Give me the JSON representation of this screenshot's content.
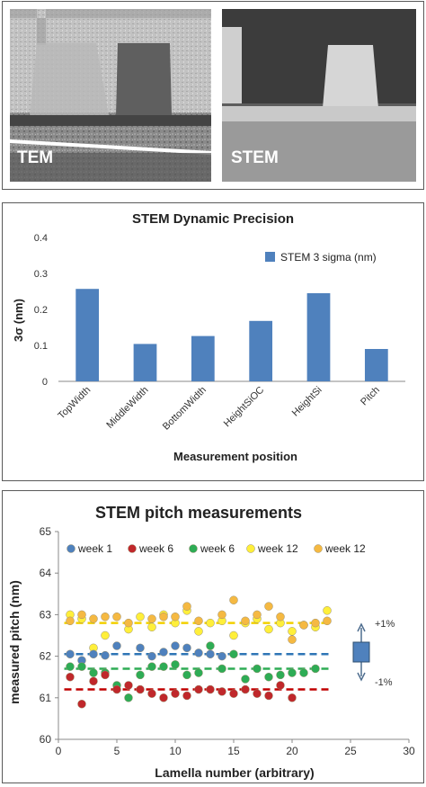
{
  "images": [
    {
      "label": "TEM",
      "icon": "tem-micrograph"
    },
    {
      "label": "STEM",
      "icon": "stem-micrograph"
    }
  ],
  "chart_data": [
    {
      "type": "bar",
      "title": "STEM Dynamic Precision",
      "xlabel": "Measurement position",
      "ylabel": "3σ (nm)",
      "ylim": [
        0,
        0.4
      ],
      "yticks": [
        "0",
        "0.1",
        "0.2",
        "0.3",
        "0.4"
      ],
      "categories": [
        "TopWidth",
        "MiddleWidth",
        "BottomWidth",
        "HeightSiOC",
        "HeightSi",
        "Pitch"
      ],
      "series": [
        {
          "name": "STEM 3 sigma (nm)",
          "color": "#4f81bd",
          "values": [
            0.257,
            0.104,
            0.126,
            0.168,
            0.245,
            0.09
          ]
        }
      ],
      "legend": "top-right",
      "grid": false
    },
    {
      "type": "scatter",
      "title": "STEM pitch measurements",
      "xlabel": "Lamella number (arbitrary)",
      "ylabel": "measured pitch (nm)",
      "xlim": [
        0,
        30
      ],
      "ylim": [
        60,
        65
      ],
      "xticks": [
        "0",
        "5",
        "10",
        "15",
        "20",
        "25",
        "30"
      ],
      "yticks": [
        "60",
        "61",
        "62",
        "63",
        "64",
        "65"
      ],
      "legend": "top",
      "grid": false,
      "series": [
        {
          "name": "week 1",
          "color": "#4f81bd",
          "mean": 62.05,
          "x": [
            1,
            2,
            3,
            4,
            5,
            7,
            8,
            9,
            10,
            11,
            12,
            13,
            14
          ],
          "y": [
            62.05,
            61.9,
            62.05,
            62.02,
            62.25,
            62.2,
            62.0,
            62.1,
            62.25,
            62.2,
            62.08,
            62.05,
            62.0
          ]
        },
        {
          "name": "week 6",
          "color": "#c0282b",
          "mean": 61.2,
          "x": [
            1,
            2,
            3,
            4,
            5,
            6,
            7,
            8,
            9,
            10,
            11,
            12,
            13,
            14,
            15,
            16,
            17,
            18,
            19,
            20
          ],
          "y": [
            61.5,
            60.85,
            61.4,
            61.55,
            61.2,
            61.3,
            61.2,
            61.1,
            61.0,
            61.1,
            61.05,
            61.2,
            61.2,
            61.15,
            61.1,
            61.2,
            61.1,
            61.05,
            61.3,
            61.0
          ]
        },
        {
          "name": "week 6",
          "color": "#2eac55",
          "mean": 61.7,
          "x": [
            1,
            2,
            3,
            4,
            5,
            6,
            7,
            8,
            9,
            10,
            11,
            12,
            13,
            14,
            15,
            16,
            17,
            18,
            19,
            20,
            21,
            22
          ],
          "y": [
            61.75,
            61.75,
            61.6,
            61.6,
            61.3,
            61.0,
            61.55,
            61.75,
            61.75,
            61.8,
            61.55,
            61.6,
            62.25,
            61.7,
            62.05,
            61.45,
            61.7,
            61.5,
            61.55,
            61.6,
            61.6,
            61.7
          ]
        },
        {
          "name": "week 12",
          "color": "#ffef3a",
          "mean": 62.8,
          "x": [
            1,
            2,
            3,
            4,
            6,
            7,
            8,
            9,
            10,
            11,
            12,
            13,
            14,
            15,
            16,
            17,
            18,
            19,
            20,
            21,
            22,
            23
          ],
          "y": [
            63.0,
            62.9,
            62.2,
            62.5,
            62.65,
            62.95,
            62.7,
            63.0,
            62.8,
            63.1,
            62.6,
            62.8,
            62.85,
            62.5,
            62.8,
            62.9,
            62.65,
            62.8,
            62.6,
            62.75,
            62.7,
            63.1
          ]
        },
        {
          "name": "week 12",
          "color": "#f5b942",
          "mean": 62.8,
          "x": [
            1,
            2,
            3,
            4,
            5,
            6,
            8,
            9,
            10,
            11,
            12,
            14,
            15,
            16,
            17,
            18,
            19,
            20,
            21,
            22,
            23
          ],
          "y": [
            62.85,
            63.0,
            62.9,
            62.95,
            62.95,
            62.8,
            62.9,
            62.95,
            62.95,
            63.2,
            62.85,
            63.0,
            63.35,
            62.85,
            63.0,
            63.2,
            62.95,
            62.4,
            62.75,
            62.8,
            62.85
          ]
        }
      ],
      "annotations": [
        "+1%",
        "-1%"
      ]
    }
  ]
}
